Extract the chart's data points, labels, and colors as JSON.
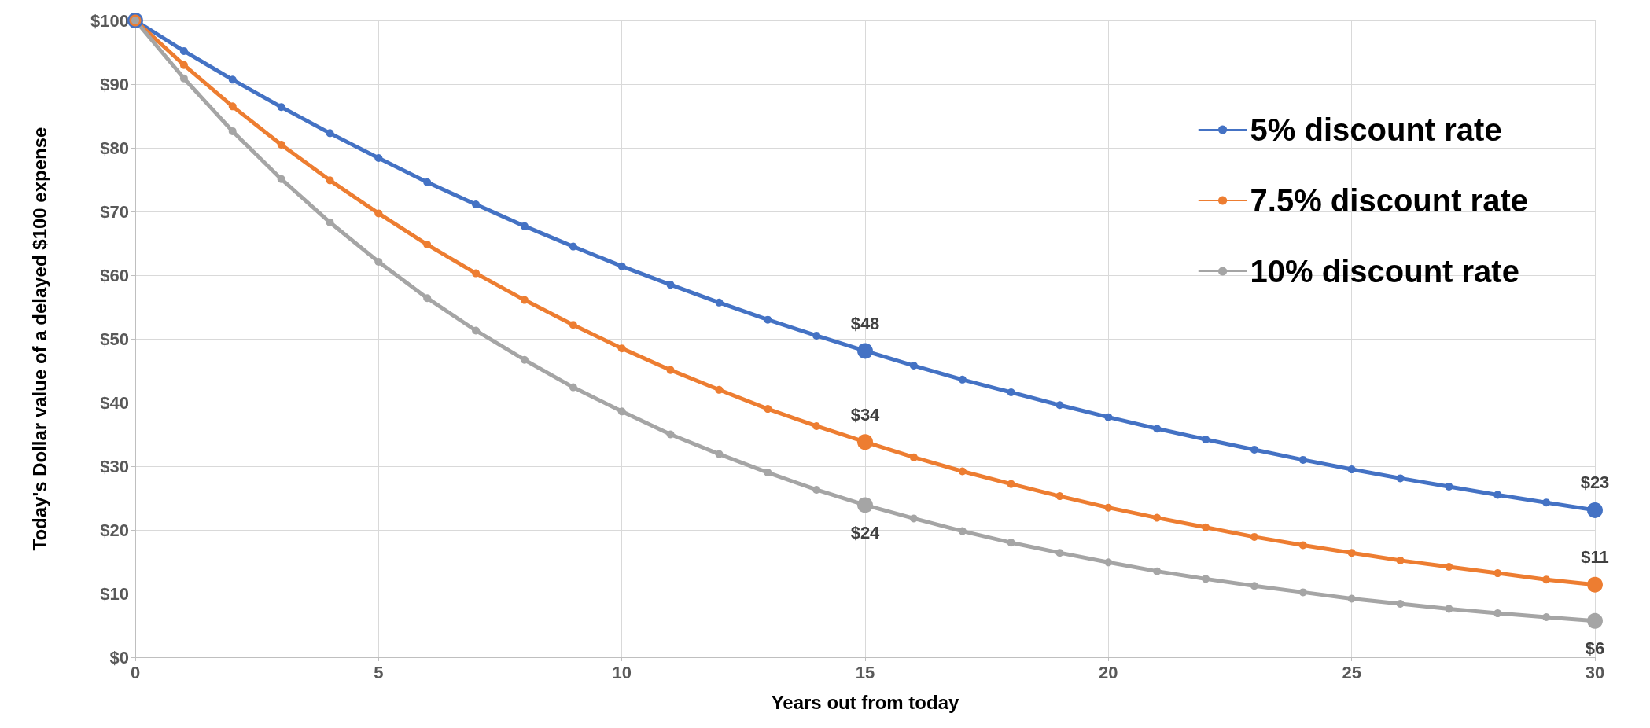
{
  "chart_data": {
    "type": "line",
    "xlabel": "Years out from today",
    "ylabel": "Today's Dollar value of a delayed $100 expense",
    "x": [
      0,
      1,
      2,
      3,
      4,
      5,
      6,
      7,
      8,
      9,
      10,
      11,
      12,
      13,
      14,
      15,
      16,
      17,
      18,
      19,
      20,
      21,
      22,
      23,
      24,
      25,
      26,
      27,
      28,
      29,
      30
    ],
    "series": [
      {
        "name": "5% discount rate",
        "color": "#4472c4",
        "values": [
          100,
          95.2,
          90.7,
          86.4,
          82.3,
          78.4,
          74.6,
          71.1,
          67.7,
          64.5,
          61.4,
          58.5,
          55.7,
          53.0,
          50.5,
          48.1,
          45.8,
          43.6,
          41.6,
          39.6,
          37.7,
          35.9,
          34.2,
          32.6,
          31.0,
          29.5,
          28.1,
          26.8,
          25.5,
          24.3,
          23.1
        ],
        "value_labels": [
          null,
          null,
          null,
          null,
          null,
          null,
          null,
          null,
          null,
          null,
          null,
          null,
          null,
          null,
          null,
          "$48",
          null,
          null,
          null,
          null,
          null,
          null,
          null,
          null,
          null,
          null,
          null,
          null,
          null,
          null,
          "$23"
        ]
      },
      {
        "name": "7.5% discount rate",
        "color": "#ed7d31",
        "values": [
          100,
          93.0,
          86.5,
          80.5,
          74.9,
          69.7,
          64.8,
          60.3,
          56.1,
          52.2,
          48.5,
          45.1,
          42.0,
          39.0,
          36.3,
          33.8,
          31.4,
          29.2,
          27.2,
          25.3,
          23.5,
          21.9,
          20.4,
          18.9,
          17.6,
          16.4,
          15.2,
          14.2,
          13.2,
          12.2,
          11.4
        ],
        "value_labels": [
          null,
          null,
          null,
          null,
          null,
          null,
          null,
          null,
          null,
          null,
          null,
          null,
          null,
          null,
          null,
          "$34",
          null,
          null,
          null,
          null,
          null,
          null,
          null,
          null,
          null,
          null,
          null,
          null,
          null,
          null,
          "$11"
        ]
      },
      {
        "name": "10% discount rate",
        "color": "#a5a5a5",
        "values": [
          100,
          90.9,
          82.6,
          75.1,
          68.3,
          62.1,
          56.4,
          51.3,
          46.7,
          42.4,
          38.6,
          35.0,
          31.9,
          29.0,
          26.3,
          23.9,
          21.8,
          19.8,
          18.0,
          16.4,
          14.9,
          13.5,
          12.3,
          11.2,
          10.2,
          9.2,
          8.4,
          7.6,
          6.9,
          6.3,
          5.7
        ],
        "value_labels": [
          null,
          null,
          null,
          null,
          null,
          null,
          null,
          null,
          null,
          null,
          null,
          null,
          null,
          null,
          null,
          "$24",
          null,
          null,
          null,
          null,
          null,
          null,
          null,
          null,
          null,
          null,
          null,
          null,
          null,
          null,
          "$6"
        ]
      }
    ],
    "xlim": [
      0,
      30
    ],
    "xticks": [
      0,
      5,
      10,
      15,
      20,
      25,
      30
    ],
    "ylim": [
      0,
      100
    ],
    "yticks": [
      {
        "value": 0,
        "label": "$0"
      },
      {
        "value": 10,
        "label": "$10"
      },
      {
        "value": 20,
        "label": "$20"
      },
      {
        "value": 30,
        "label": "$30"
      },
      {
        "value": 40,
        "label": "$40"
      },
      {
        "value": 50,
        "label": "$50"
      },
      {
        "value": 60,
        "label": "$60"
      },
      {
        "value": 70,
        "label": "$70"
      },
      {
        "value": 80,
        "label": "$80"
      },
      {
        "value": 90,
        "label": "$90"
      },
      {
        "value": 100,
        "label": "$100"
      }
    ],
    "grid": true,
    "legend": "top right",
    "marker": "circle",
    "line_style": "solid"
  }
}
